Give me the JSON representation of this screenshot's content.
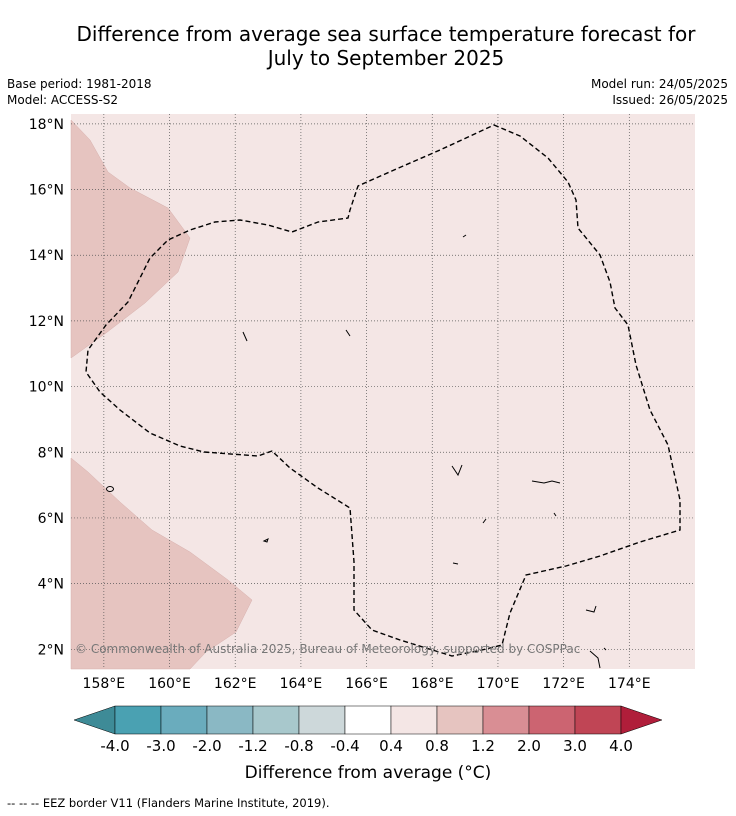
{
  "title_line1": "Difference from average sea surface temperature forecast for",
  "title_line2": "July to September 2025",
  "base_period": "Base period: 1981-2018",
  "model": "Model: ACCESS-S2",
  "model_run": "Model run: 24/05/2025",
  "issued": "Issued: 26/05/2025",
  "map": {
    "lon_ticks": [
      "158°E",
      "160°E",
      "162°E",
      "164°E",
      "166°E",
      "168°E",
      "170°E",
      "172°E",
      "174°E"
    ],
    "lat_ticks": [
      "18°N",
      "16°N",
      "14°N",
      "12°N",
      "10°N",
      "8°N",
      "6°N",
      "4°N",
      "2°N"
    ],
    "lon_range": [
      157.0,
      176.0
    ],
    "lat_range": [
      1.4,
      18.3
    ],
    "background_color": "#f4e6e5",
    "warm_region_color": "#e6c4c0",
    "copyright": "© Commonwealth of Australia 2025, Bureau of Meteorology, supported by COSPPac"
  },
  "colorbar": {
    "labels": [
      "-4.0",
      "-3.0",
      "-2.0",
      "-1.2",
      "-0.8",
      "-0.4",
      "0.4",
      "0.8",
      "1.2",
      "2.0",
      "3.0",
      "4.0"
    ],
    "colors": [
      "#3e8b97",
      "#4aa1b2",
      "#6aacbd",
      "#8ab8c4",
      "#a8c8cc",
      "#cdd8da",
      "#ffffff",
      "#f4e6e5",
      "#e6c4c0",
      "#d98e94",
      "#cc6471",
      "#c04555",
      "#b01e3a"
    ],
    "title": "Difference from average (°C)"
  },
  "footnote": "--  --  -- EEZ border V11 (Flanders Marine Institute, 2019)."
}
